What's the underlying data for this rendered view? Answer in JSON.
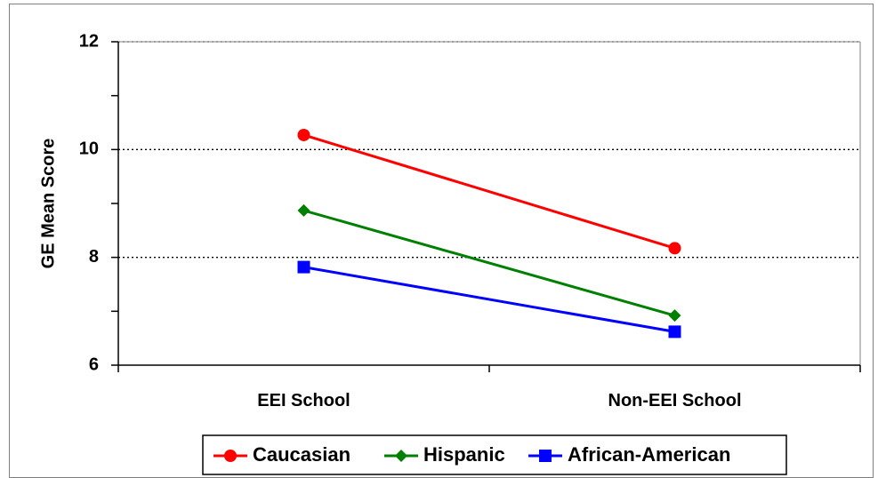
{
  "chart_data": {
    "type": "line",
    "title": "",
    "xlabel": "",
    "ylabel": "GE Mean Score",
    "categories": [
      "EEI School",
      "Non-EEI School"
    ],
    "ylim": [
      6,
      12
    ],
    "yticks": [
      "6",
      "8",
      "10",
      "12"
    ],
    "grid": "horizontal dotted",
    "legend_position": "bottom",
    "series": [
      {
        "name": "Caucasian",
        "values": [
          10.27,
          8.17
        ],
        "color": "#ff0000",
        "marker": "circle"
      },
      {
        "name": "Hispanic",
        "values": [
          8.87,
          6.92
        ],
        "color": "#008000",
        "marker": "diamond"
      },
      {
        "name": "African-American",
        "values": [
          7.82,
          6.62
        ],
        "color": "#0000ff",
        "marker": "square"
      }
    ]
  }
}
